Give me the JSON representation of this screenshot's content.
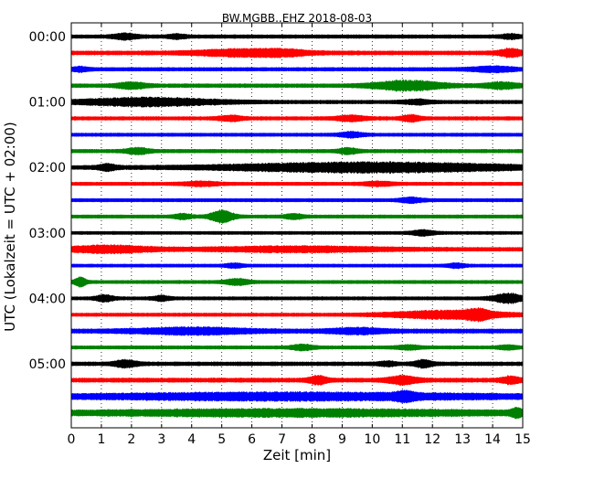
{
  "chart_data": {
    "type": "line",
    "title": "BW.MGBB..EHZ 2018-08-03",
    "xlabel": "Zeit  [min]",
    "ylabel": "UTC (Lokalzeit = UTC + 02:00)",
    "xlim": [
      0,
      15
    ],
    "x_ticks": [
      "0",
      "1",
      "2",
      "3",
      "4",
      "5",
      "6",
      "7",
      "8",
      "9",
      "10",
      "11",
      "12",
      "13",
      "14",
      "15"
    ],
    "y_ticks": [
      "00:00",
      "01:00",
      "02:00",
      "03:00",
      "04:00",
      "05:00"
    ],
    "grid": true,
    "trace_interval_min": 15,
    "trace_count": 24,
    "trace_colors": [
      "#000000",
      "#ff0000",
      "#0000ff",
      "#008000"
    ],
    "series": [
      {
        "start": "00:00",
        "color": "#000000",
        "amp": 0.35,
        "bursts": [
          [
            1.8,
            0.4,
            1.2
          ],
          [
            3.5,
            0.3,
            0.8
          ],
          [
            14.6,
            0.3,
            0.8
          ]
        ]
      },
      {
        "start": "00:15",
        "color": "#ff0000",
        "amp": 0.45,
        "bursts": [
          [
            5.5,
            1.5,
            1.2
          ],
          [
            7.0,
            1.0,
            1.0
          ],
          [
            14.6,
            0.4,
            1.6
          ]
        ]
      },
      {
        "start": "00:30",
        "color": "#0000ff",
        "amp": 0.35,
        "bursts": [
          [
            0.3,
            0.3,
            0.8
          ],
          [
            14.0,
            0.8,
            1.0
          ]
        ]
      },
      {
        "start": "00:45",
        "color": "#008000",
        "amp": 0.4,
        "bursts": [
          [
            2.0,
            0.5,
            1.2
          ],
          [
            11.2,
            1.2,
            2.0
          ],
          [
            14.3,
            0.6,
            1.2
          ]
        ]
      },
      {
        "start": "01:00",
        "color": "#000000",
        "amp": 0.35,
        "bursts": [
          [
            2.5,
            2.5,
            1.6
          ],
          [
            11.5,
            0.5,
            0.8
          ]
        ]
      },
      {
        "start": "01:15",
        "color": "#ff0000",
        "amp": 0.35,
        "bursts": [
          [
            5.3,
            0.4,
            1.0
          ],
          [
            11.3,
            0.3,
            1.4
          ],
          [
            9.3,
            0.5,
            1.0
          ]
        ]
      },
      {
        "start": "01:30",
        "color": "#0000ff",
        "amp": 0.3,
        "bursts": [
          [
            9.3,
            0.4,
            1.0
          ]
        ]
      },
      {
        "start": "01:45",
        "color": "#008000",
        "amp": 0.35,
        "bursts": [
          [
            2.2,
            0.4,
            1.2
          ],
          [
            9.2,
            0.3,
            1.2
          ]
        ]
      },
      {
        "start": "02:00",
        "color": "#000000",
        "amp": 0.4,
        "bursts": [
          [
            1.2,
            0.3,
            1.2
          ],
          [
            10.0,
            5.0,
            2.0
          ]
        ]
      },
      {
        "start": "02:15",
        "color": "#ff0000",
        "amp": 0.3,
        "bursts": [
          [
            4.3,
            0.6,
            0.8
          ],
          [
            10.2,
            0.5,
            0.8
          ]
        ]
      },
      {
        "start": "02:30",
        "color": "#0000ff",
        "amp": 0.3,
        "bursts": [
          [
            11.3,
            0.4,
            1.0
          ]
        ]
      },
      {
        "start": "02:45",
        "color": "#008000",
        "amp": 0.3,
        "bursts": [
          [
            5.0,
            0.4,
            2.6
          ],
          [
            7.4,
            0.3,
            1.0
          ],
          [
            3.7,
            0.3,
            1.0
          ]
        ]
      },
      {
        "start": "03:00",
        "color": "#000000",
        "amp": 0.25,
        "bursts": [
          [
            11.7,
            0.4,
            1.0
          ]
        ]
      },
      {
        "start": "03:15",
        "color": "#ff0000",
        "amp": 0.4,
        "bursts": [
          [
            1.2,
            1.5,
            1.4
          ],
          [
            7.5,
            3.0,
            1.0
          ]
        ]
      },
      {
        "start": "03:30",
        "color": "#0000ff",
        "amp": 0.25,
        "bursts": [
          [
            5.4,
            0.3,
            0.8
          ],
          [
            12.8,
            0.3,
            0.8
          ]
        ]
      },
      {
        "start": "03:45",
        "color": "#008000",
        "amp": 0.3,
        "bursts": [
          [
            0.3,
            0.2,
            1.8
          ],
          [
            5.5,
            0.4,
            1.2
          ]
        ]
      },
      {
        "start": "04:00",
        "color": "#000000",
        "amp": 0.3,
        "bursts": [
          [
            1.1,
            0.3,
            1.2
          ],
          [
            3.0,
            0.3,
            0.9
          ],
          [
            14.5,
            0.5,
            2.0
          ]
        ]
      },
      {
        "start": "04:15",
        "color": "#ff0000",
        "amp": 0.3,
        "bursts": [
          [
            12.5,
            2.0,
            1.6
          ],
          [
            13.5,
            0.4,
            1.6
          ]
        ]
      },
      {
        "start": "04:30",
        "color": "#0000ff",
        "amp": 0.5,
        "bursts": [
          [
            4.0,
            2.0,
            1.2
          ],
          [
            9.5,
            1.0,
            1.0
          ]
        ]
      },
      {
        "start": "04:45",
        "color": "#008000",
        "amp": 0.3,
        "bursts": [
          [
            7.7,
            0.4,
            1.0
          ],
          [
            11.2,
            0.4,
            0.8
          ],
          [
            14.5,
            0.3,
            0.8
          ]
        ]
      },
      {
        "start": "05:00",
        "color": "#000000",
        "amp": 0.4,
        "bursts": [
          [
            1.8,
            0.4,
            1.4
          ],
          [
            10.5,
            0.3,
            0.8
          ],
          [
            11.7,
            0.3,
            1.4
          ]
        ]
      },
      {
        "start": "05:15",
        "color": "#ff0000",
        "amp": 0.5,
        "bursts": [
          [
            8.2,
            0.3,
            1.6
          ],
          [
            11.0,
            0.5,
            1.6
          ],
          [
            14.6,
            0.3,
            1.4
          ]
        ]
      },
      {
        "start": "05:30",
        "color": "#0000ff",
        "amp": 0.6,
        "bursts": [
          [
            7.5,
            7.0,
            1.3
          ],
          [
            11.1,
            0.3,
            1.4
          ]
        ]
      },
      {
        "start": "05:45",
        "color": "#008000",
        "amp": 0.6,
        "bursts": [
          [
            7.5,
            7.0,
            1.2
          ],
          [
            14.8,
            0.2,
            1.4
          ]
        ]
      }
    ]
  }
}
